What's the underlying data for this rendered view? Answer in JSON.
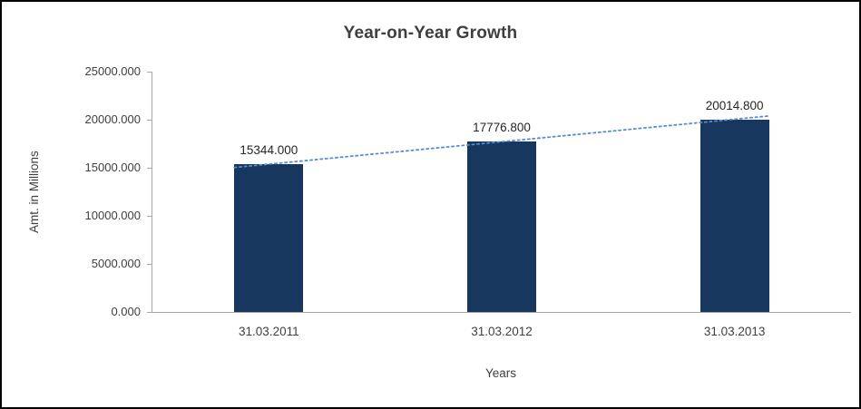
{
  "chart_data": {
    "type": "bar",
    "title": "Year-on-Year Growth",
    "xlabel": "Years",
    "ylabel": "Amt. in Millions",
    "categories": [
      "31.03.2011",
      "31.03.2012",
      "31.03.2013"
    ],
    "values": [
      15344.0,
      17776.8,
      20014.8
    ],
    "data_labels": [
      "15344.000",
      "17776.800",
      "20014.800"
    ],
    "ylim": [
      0,
      25000
    ],
    "ytick_step": 5000,
    "ytick_labels": [
      "0.000",
      "5000.000",
      "10000.000",
      "15000.000",
      "20000.000",
      "25000.000"
    ],
    "grid": false,
    "legend": false,
    "bar_color": "#17375E",
    "axis_color": "#a6a6a6",
    "trendline": {
      "type": "linear",
      "style": "dotted",
      "color": "#538DD5"
    }
  }
}
